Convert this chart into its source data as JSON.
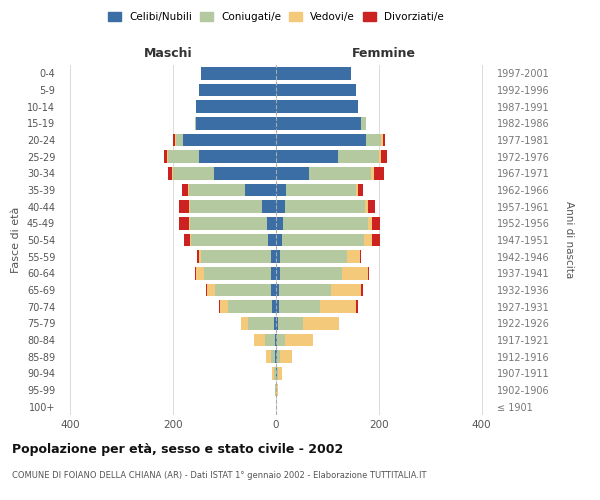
{
  "age_groups": [
    "100+",
    "95-99",
    "90-94",
    "85-89",
    "80-84",
    "75-79",
    "70-74",
    "65-69",
    "60-64",
    "55-59",
    "50-54",
    "45-49",
    "40-44",
    "35-39",
    "30-34",
    "25-29",
    "20-24",
    "15-19",
    "10-14",
    "5-9",
    "0-4"
  ],
  "birth_years": [
    "≤ 1901",
    "1902-1906",
    "1907-1911",
    "1912-1916",
    "1917-1921",
    "1922-1926",
    "1927-1931",
    "1932-1936",
    "1937-1941",
    "1942-1946",
    "1947-1951",
    "1952-1956",
    "1957-1961",
    "1962-1966",
    "1967-1971",
    "1972-1976",
    "1977-1981",
    "1982-1986",
    "1987-1991",
    "1992-1996",
    "1997-2001"
  ],
  "colors": {
    "celibi": "#3a6ea5",
    "coniugati": "#b5c9a0",
    "vedovi": "#f5c97a",
    "divorziati": "#cc2222"
  },
  "males": {
    "celibi": [
      0,
      0,
      0,
      1,
      2,
      4,
      8,
      9,
      10,
      10,
      15,
      18,
      28,
      60,
      120,
      150,
      180,
      155,
      155,
      150,
      145
    ],
    "coniugati": [
      0,
      1,
      4,
      8,
      20,
      50,
      85,
      110,
      130,
      135,
      150,
      150,
      140,
      110,
      80,
      60,
      15,
      3,
      0,
      0,
      0
    ],
    "vedovi": [
      0,
      1,
      3,
      10,
      20,
      15,
      15,
      15,
      15,
      5,
      3,
      2,
      2,
      2,
      2,
      2,
      2,
      0,
      0,
      0,
      0
    ],
    "divorziati": [
      0,
      0,
      0,
      0,
      0,
      0,
      2,
      2,
      3,
      4,
      10,
      18,
      18,
      10,
      8,
      5,
      3,
      0,
      0,
      0,
      0
    ]
  },
  "females": {
    "celibi": [
      0,
      0,
      1,
      1,
      2,
      3,
      5,
      6,
      8,
      8,
      12,
      14,
      18,
      20,
      65,
      120,
      175,
      165,
      160,
      155,
      145
    ],
    "coniugati": [
      0,
      0,
      3,
      6,
      15,
      50,
      80,
      100,
      120,
      130,
      160,
      165,
      155,
      135,
      120,
      80,
      30,
      10,
      0,
      0,
      0
    ],
    "vedovi": [
      0,
      3,
      8,
      25,
      55,
      70,
      70,
      60,
      50,
      25,
      15,
      8,
      5,
      5,
      5,
      5,
      3,
      0,
      0,
      0,
      0
    ],
    "divorziati": [
      0,
      0,
      0,
      0,
      0,
      0,
      5,
      3,
      3,
      3,
      15,
      15,
      15,
      10,
      20,
      10,
      3,
      0,
      0,
      0,
      0
    ]
  },
  "xlim": 420,
  "title": "Popolazione per età, sesso e stato civile - 2002",
  "subtitle": "COMUNE DI FOIANO DELLA CHIANA (AR) - Dati ISTAT 1° gennaio 2002 - Elaborazione TUTTITALIA.IT",
  "ylabel_left": "Fasce di età",
  "ylabel_right": "Anni di nascita"
}
